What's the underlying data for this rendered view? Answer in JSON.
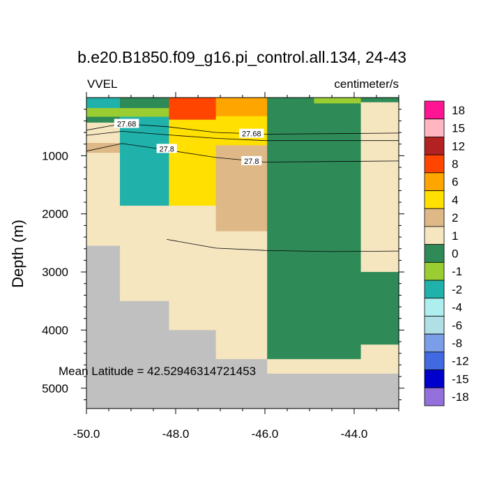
{
  "chart_data": {
    "type": "heatmap",
    "title": "b.e20.B1850.f09_g16.pi_control.all.134, 24-43",
    "left_label": "VVEL",
    "right_label": "centimeter/s",
    "xlabel": "",
    "ylabel": "Depth (m)",
    "xlim": [
      -50.0,
      -43.0
    ],
    "ylim": [
      5350,
      0
    ],
    "x_ticks": [
      -50.0,
      -48.0,
      -46.0,
      -44.0
    ],
    "x_tick_labels": [
      "-50.0",
      "-48.0",
      "-46.0",
      "-44.0"
    ],
    "y_ticks": [
      1000,
      2000,
      3000,
      4000,
      5000
    ],
    "y_tick_labels": [
      "1000",
      "2000",
      "3000",
      "4000",
      "5000"
    ],
    "annotation": "Mean Latitude = 42.52946314721453",
    "colorbar": {
      "levels": [
        "18",
        "15",
        "12",
        "8",
        "6",
        "4",
        "2",
        "1",
        "0",
        "-1",
        "-2",
        "-4",
        "-6",
        "-8",
        "-12",
        "-15",
        "-18"
      ],
      "colors": [
        "#ff1493",
        "#ffb6c1",
        "#b22222",
        "#ff4500",
        "#ffa500",
        "#ffe000",
        "#deb887",
        "#f5e6c0",
        "#2e8b57",
        "#9acd32",
        "#20b2aa",
        "#afeeee",
        "#b0e0e6",
        "#7b9ee8",
        "#4169e1",
        "#0000cd",
        "#9370db"
      ]
    },
    "missing_color": "#c0c0c0",
    "columns": [
      {
        "x0": -50.0,
        "x1": -49.25,
        "cells": [
          {
            "d0": 0,
            "d1": 180,
            "color": "#20b2aa"
          },
          {
            "d0": 180,
            "d1": 330,
            "color": "#9acd32"
          },
          {
            "d0": 330,
            "d1": 430,
            "color": "#2e8b57"
          },
          {
            "d0": 430,
            "d1": 580,
            "color": "#f5e6c0"
          },
          {
            "d0": 580,
            "d1": 780,
            "color": "#f5e6c0"
          },
          {
            "d0": 780,
            "d1": 950,
            "color": "#deb887"
          },
          {
            "d0": 950,
            "d1": 2550,
            "color": "#f5e6c0"
          },
          {
            "d0": 2550,
            "d1": 5350,
            "color": "#c0c0c0"
          }
        ]
      },
      {
        "x0": -49.25,
        "x1": -48.15,
        "cells": [
          {
            "d0": 0,
            "d1": 180,
            "color": "#2e8b57"
          },
          {
            "d0": 180,
            "d1": 330,
            "color": "#9acd32"
          },
          {
            "d0": 330,
            "d1": 1860,
            "color": "#20b2aa"
          },
          {
            "d0": 1860,
            "d1": 3500,
            "color": "#f5e6c0"
          },
          {
            "d0": 3500,
            "d1": 5350,
            "color": "#c0c0c0"
          }
        ]
      },
      {
        "x0": -48.15,
        "x1": -47.1,
        "cells": [
          {
            "d0": 0,
            "d1": 380,
            "color": "#ff4500"
          },
          {
            "d0": 380,
            "d1": 1860,
            "color": "#ffe000"
          },
          {
            "d0": 1860,
            "d1": 4000,
            "color": "#f5e6c0"
          },
          {
            "d0": 4000,
            "d1": 5350,
            "color": "#c0c0c0"
          }
        ]
      },
      {
        "x0": -47.1,
        "x1": -45.95,
        "cells": [
          {
            "d0": 0,
            "d1": 320,
            "color": "#ffa500"
          },
          {
            "d0": 320,
            "d1": 820,
            "color": "#ffe000"
          },
          {
            "d0": 820,
            "d1": 2300,
            "color": "#deb887"
          },
          {
            "d0": 2300,
            "d1": 4500,
            "color": "#f5e6c0"
          },
          {
            "d0": 4500,
            "d1": 5350,
            "color": "#c0c0c0"
          }
        ]
      },
      {
        "x0": -45.95,
        "x1": -44.9,
        "cells": [
          {
            "d0": 0,
            "d1": 4500,
            "color": "#2e8b57"
          },
          {
            "d0": 4500,
            "d1": 4750,
            "color": "#f5e6c0"
          },
          {
            "d0": 4750,
            "d1": 5350,
            "color": "#c0c0c0"
          }
        ]
      },
      {
        "x0": -44.9,
        "x1": -43.85,
        "cells": [
          {
            "d0": 0,
            "d1": 100,
            "color": "#9acd32"
          },
          {
            "d0": 100,
            "d1": 4500,
            "color": "#2e8b57"
          },
          {
            "d0": 4500,
            "d1": 4750,
            "color": "#f5e6c0"
          },
          {
            "d0": 4750,
            "d1": 5350,
            "color": "#c0c0c0"
          }
        ]
      },
      {
        "x0": -43.85,
        "x1": -43.0,
        "cells": [
          {
            "d0": 0,
            "d1": 80,
            "color": "#2e8b57"
          },
          {
            "d0": 80,
            "d1": 3000,
            "color": "#f5e6c0"
          },
          {
            "d0": 3000,
            "d1": 4250,
            "color": "#2e8b57"
          },
          {
            "d0": 4250,
            "d1": 4750,
            "color": "#f5e6c0"
          },
          {
            "d0": 4750,
            "d1": 5350,
            "color": "#c0c0c0"
          }
        ]
      }
    ],
    "contours": [
      {
        "level": "27.68",
        "points": [
          [
            -50.0,
            560
          ],
          [
            -49.2,
            450
          ],
          [
            -48.2,
            500
          ],
          [
            -47.1,
            600
          ],
          [
            -46.0,
            630
          ],
          [
            -43.0,
            610
          ]
        ],
        "labels": [
          {
            "x": -49.1,
            "d": 450,
            "text": "27.68"
          },
          {
            "x": -46.3,
            "d": 620,
            "text": "27.68"
          }
        ]
      },
      {
        "level": "27.8",
        "points": [
          [
            -50.0,
            650
          ],
          [
            -49.2,
            580
          ],
          [
            -48.2,
            640
          ],
          [
            -47.1,
            700
          ],
          [
            -46.0,
            740
          ],
          [
            -43.0,
            740
          ]
        ],
        "labels": []
      },
      {
        "level": "27.8",
        "points": [
          [
            -50.0,
            920
          ],
          [
            -49.2,
            790
          ],
          [
            -48.2,
            900
          ],
          [
            -47.1,
            1030
          ],
          [
            -46.0,
            1110
          ],
          [
            -43.0,
            1090
          ]
        ],
        "labels": [
          {
            "x": -48.2,
            "d": 880,
            "text": "27.8"
          },
          {
            "x": -46.3,
            "d": 1090,
            "text": "27.8"
          }
        ]
      },
      {
        "level": "27.8",
        "points": [
          [
            -48.2,
            2440
          ],
          [
            -47.1,
            2590
          ],
          [
            -46.0,
            2630
          ],
          [
            -44.5,
            2650
          ],
          [
            -43.0,
            2640
          ]
        ],
        "labels": []
      }
    ]
  }
}
